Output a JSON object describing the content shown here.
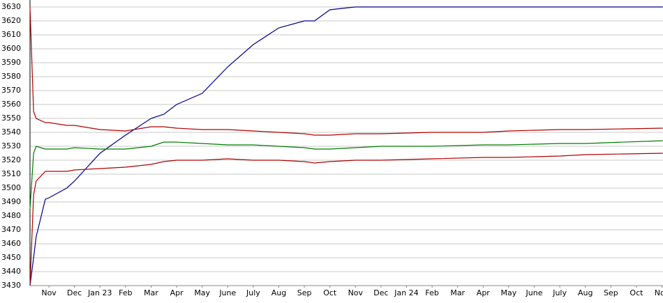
{
  "chart_data": {
    "type": "line",
    "x": [
      -0.74,
      -0.6,
      -0.5,
      -0.14,
      0,
      0.7,
      1,
      2,
      3,
      4,
      4.5,
      5,
      6,
      7,
      8,
      9,
      10,
      10.4,
      11,
      12,
      13,
      15,
      17,
      18,
      20,
      21,
      24.03
    ],
    "series": [
      {
        "color": "#00008b",
        "values": [
          3430,
          3450,
          3465,
          3492,
          3493,
          3500,
          3505,
          3525,
          3538,
          3550,
          3553,
          3560,
          3568,
          3587,
          3603,
          3615,
          3620,
          3620,
          3628,
          3630,
          3630,
          3630,
          3630,
          3630,
          3630,
          3630,
          3630
        ]
      },
      {
        "color": "#b00000",
        "values": [
          3630,
          3555,
          3550,
          3547,
          3547,
          3545,
          3545,
          3542,
          3541,
          3544,
          3544,
          3543,
          3542,
          3542,
          3541,
          3540,
          3539,
          3538,
          3538,
          3539,
          3539,
          3540,
          3540,
          3541,
          3542,
          3542,
          3543
        ]
      },
      {
        "color": "#007a00",
        "values": [
          3485,
          3525,
          3530,
          3528,
          3528,
          3528,
          3529,
          3528,
          3528,
          3530,
          3533,
          3533,
          3532,
          3531,
          3531,
          3530,
          3529,
          3528,
          3528,
          3529,
          3530,
          3530,
          3531,
          3531,
          3532,
          3532,
          3534
        ]
      },
      {
        "color": "#b00000",
        "values": [
          3430,
          3495,
          3505,
          3512,
          3512,
          3512,
          3513,
          3514,
          3515,
          3517,
          3519,
          3520,
          3520,
          3521,
          3520,
          3520,
          3519,
          3518,
          3519,
          3520,
          3520,
          3521,
          3522,
          3522,
          3523,
          3524,
          3525
        ]
      }
    ],
    "xlim": [
      -0.74,
      24.04
    ],
    "xticks": [
      {
        "value": 0,
        "label": "Nov"
      },
      {
        "value": 1,
        "label": "Dec"
      },
      {
        "value": 2,
        "label": "Jan 23"
      },
      {
        "value": 3,
        "label": "Feb"
      },
      {
        "value": 4,
        "label": "Mar"
      },
      {
        "value": 5,
        "label": "Apr"
      },
      {
        "value": 6,
        "label": "May"
      },
      {
        "value": 7,
        "label": "June"
      },
      {
        "value": 8,
        "label": "July"
      },
      {
        "value": 9,
        "label": "Aug"
      },
      {
        "value": 10,
        "label": "Sep"
      },
      {
        "value": 11,
        "label": "Oct"
      },
      {
        "value": 12,
        "label": "Nov"
      },
      {
        "value": 13,
        "label": "Dec"
      },
      {
        "value": 14,
        "label": "Jan 24"
      },
      {
        "value": 15,
        "label": "Feb"
      },
      {
        "value": 16,
        "label": "Mar"
      },
      {
        "value": 17,
        "label": "Apr"
      },
      {
        "value": 18,
        "label": "May"
      },
      {
        "value": 19,
        "label": "June"
      },
      {
        "value": 20,
        "label": "July"
      },
      {
        "value": 21,
        "label": "Aug"
      },
      {
        "value": 22,
        "label": "Sep"
      },
      {
        "value": 23,
        "label": "Oct"
      },
      {
        "value": 24,
        "label": "Nov"
      }
    ],
    "ylim": [
      3430,
      3630
    ],
    "yticks": [
      3430,
      3440,
      3450,
      3460,
      3470,
      3480,
      3490,
      3500,
      3510,
      3520,
      3530,
      3540,
      3550,
      3560,
      3570,
      3580,
      3590,
      3600,
      3610,
      3620,
      3630
    ],
    "grid": true
  }
}
